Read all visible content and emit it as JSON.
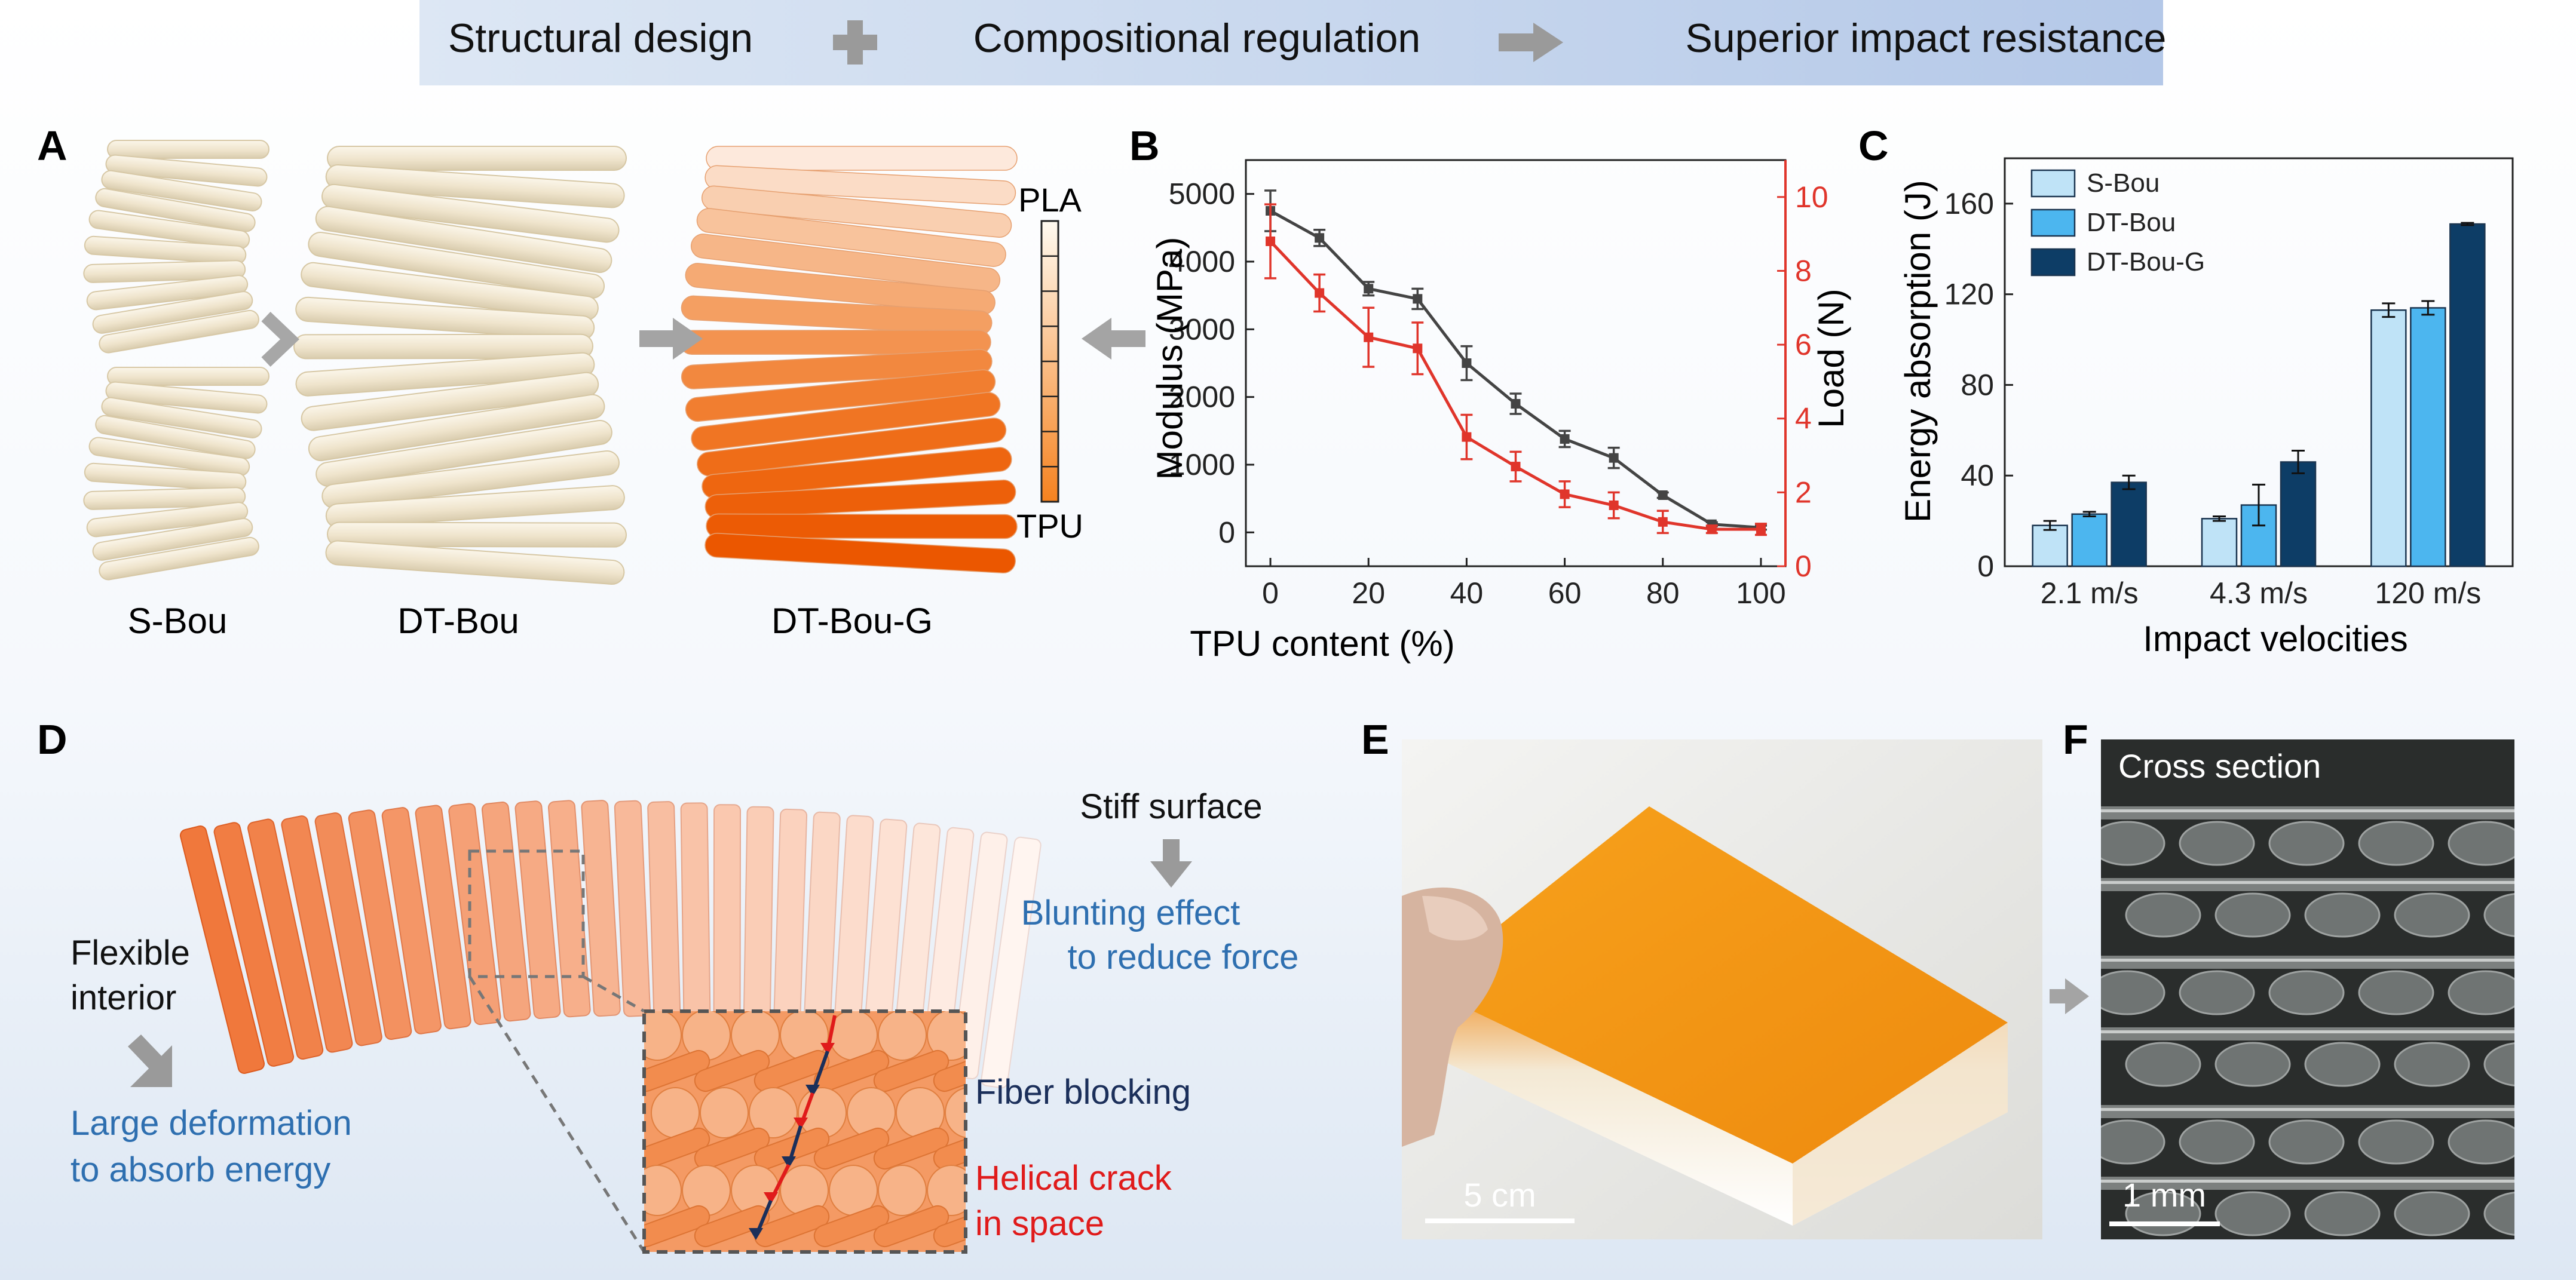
{
  "banner": {
    "step1": "Structural design",
    "step2": "Compositional regulation",
    "step3": "Superior impact resistance"
  },
  "panelA": {
    "letter": "A",
    "labels": [
      "S-Bou",
      "DT-Bou",
      "DT-Bou-G"
    ],
    "gradient_top": "PLA",
    "gradient_bottom": "TPU"
  },
  "panelB": {
    "letter": "B",
    "xlabel": "TPU content (%)",
    "ylabel_left": "Modulus (MPa)",
    "ylabel_right": "Load (N)"
  },
  "panelC": {
    "letter": "C",
    "xlabel": "Impact velocities",
    "ylabel": "Energy absorption (J)"
  },
  "panelD": {
    "letter": "D",
    "stiff": "Stiff surface",
    "blunt1": "Blunting effect",
    "blunt2": "to reduce force",
    "flex1": "Flexible",
    "flex2": "interior",
    "large1": "Large deformation",
    "large2": "to absorb energy",
    "fiber": "Fiber blocking",
    "helical1": "Helical crack",
    "helical2": "in space"
  },
  "panelE": {
    "letter": "E",
    "scale": "5 cm"
  },
  "panelF": {
    "letter": "F",
    "title": "Cross section",
    "scale": "1 mm"
  },
  "colors": {
    "modulus": "#444444",
    "load": "#e0352b",
    "sbou": "#bfe3f7",
    "dtbou": "#4cb6ef",
    "dtboug": "#0d3d66",
    "orange": "#f5821f",
    "cream": "#f3ead7"
  },
  "chart_data": [
    {
      "type": "line",
      "x": [
        0,
        10,
        20,
        30,
        40,
        50,
        60,
        70,
        80,
        90,
        100
      ],
      "xticks": [
        0,
        20,
        40,
        60,
        80,
        100
      ],
      "xlim": [
        -5,
        105
      ],
      "yticks_left": [
        0,
        1000,
        2000,
        3000,
        4000,
        5000
      ],
      "ylim_left": [
        -500,
        5500
      ],
      "yticks_right": [
        0,
        2,
        4,
        6,
        8,
        10
      ],
      "ylim_right": [
        0,
        11
      ],
      "series": [
        {
          "axis": "left",
          "values": [
            4750,
            4350,
            3600,
            3450,
            2500,
            1900,
            1380,
            1100,
            550,
            120,
            70
          ],
          "errors": [
            300,
            120,
            100,
            150,
            250,
            150,
            120,
            150,
            40,
            30,
            30
          ]
        },
        {
          "axis": "right",
          "values": [
            8.8,
            7.4,
            6.2,
            5.9,
            3.5,
            2.7,
            1.95,
            1.65,
            1.2,
            1.0,
            1.0
          ],
          "errors": [
            1.0,
            0.5,
            0.8,
            0.7,
            0.6,
            0.4,
            0.35,
            0.35,
            0.3,
            0.1,
            0.15
          ]
        }
      ]
    },
    {
      "type": "bar",
      "categories": [
        "2.1 m/s",
        "4.3 m/s",
        "120 m/s"
      ],
      "yticks": [
        0,
        40,
        80,
        120,
        160
      ],
      "ylim": [
        0,
        180
      ],
      "series": [
        {
          "name": "S-Bou",
          "values": [
            18,
            21,
            113
          ],
          "errors": [
            2,
            1,
            3
          ]
        },
        {
          "name": "DT-Bou",
          "values": [
            23,
            27,
            114
          ],
          "errors": [
            1,
            9,
            3
          ]
        },
        {
          "name": "DT-Bou-G",
          "values": [
            37,
            46,
            151
          ],
          "errors": [
            3,
            5,
            0.5
          ]
        }
      ]
    }
  ]
}
